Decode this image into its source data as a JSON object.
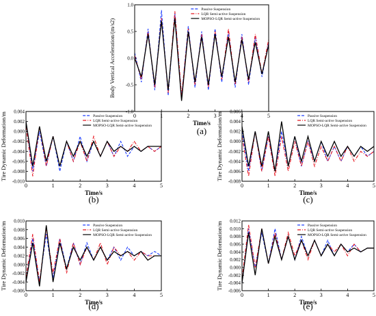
{
  "chart_data": [
    {
      "panel": "(a)",
      "type": "line",
      "xlabel": "Time/s",
      "ylabel": "Body Vertical Acceleration/(m/s2)",
      "xlim": [
        0,
        5
      ],
      "ylim": [
        -1.0,
        1.0
      ],
      "xticks": [
        "0",
        "1",
        "2",
        "3",
        "4",
        "5"
      ],
      "yticks": [
        "-1.0",
        "-0.5",
        "0.0",
        "0.5",
        "1.0"
      ],
      "legend_position": "top-right",
      "x": [
        0.0,
        0.25,
        0.5,
        0.75,
        1.0,
        1.25,
        1.5,
        1.75,
        2.0,
        2.25,
        2.5,
        2.75,
        3.0,
        3.25,
        3.5,
        3.75,
        4.0,
        4.25,
        4.5,
        4.75,
        5.0
      ],
      "series": [
        {
          "name": "Passive Suspension",
          "color": "#1f3fff",
          "dash": "dash",
          "values": [
            0.1,
            -0.45,
            0.55,
            -0.6,
            0.9,
            -0.7,
            0.85,
            -0.75,
            0.6,
            -0.55,
            0.5,
            -0.6,
            0.55,
            -0.45,
            0.5,
            -0.55,
            0.45,
            -0.5,
            0.4,
            -0.35,
            0.3
          ]
        },
        {
          "name": "LQR Semi-active Suspension",
          "color": "#e8141e",
          "dash": "dashdot",
          "values": [
            0.05,
            -0.4,
            0.5,
            -0.55,
            0.75,
            -0.65,
            0.88,
            -0.7,
            0.55,
            -0.5,
            0.45,
            -0.55,
            0.5,
            -0.4,
            0.55,
            -0.5,
            0.4,
            -0.45,
            0.45,
            -0.3,
            0.35
          ]
        },
        {
          "name": "MOPSO-LQR Semi-active Suspension",
          "color": "#000000",
          "dash": "solid",
          "values": [
            0.0,
            -0.35,
            0.45,
            -0.5,
            0.7,
            -0.6,
            0.75,
            -0.8,
            0.5,
            -0.45,
            0.4,
            -0.5,
            0.45,
            -0.35,
            0.4,
            -0.45,
            0.35,
            -0.4,
            0.3,
            -0.3,
            0.25
          ]
        }
      ]
    },
    {
      "panel": "(b)",
      "type": "line",
      "xlabel": "Time/s",
      "ylabel": "Tire Dynamic Deformation/m",
      "xlim": [
        0,
        5
      ],
      "ylim": [
        -0.01,
        0.004
      ],
      "xticks": [
        "0",
        "1",
        "2",
        "3",
        "4",
        "5"
      ],
      "yticks": [
        "0.004",
        "0.002",
        "0.000",
        "-0.002",
        "-0.004",
        "-0.006",
        "-0.008",
        "-0.010"
      ],
      "legend_position": "top-right",
      "x": [
        0.0,
        0.25,
        0.5,
        0.75,
        1.0,
        1.25,
        1.5,
        1.75,
        2.0,
        2.25,
        2.5,
        2.75,
        3.0,
        3.25,
        3.5,
        3.75,
        4.0,
        4.25,
        4.5,
        4.75,
        5.0
      ],
      "series": [
        {
          "name": "Passive Suspension",
          "color": "#1f3fff",
          "dash": "dash",
          "values": [
            0.002,
            -0.008,
            0.0,
            -0.007,
            -0.001,
            -0.008,
            -0.002,
            -0.006,
            -0.001,
            -0.006,
            -0.002,
            -0.005,
            -0.002,
            -0.005,
            -0.002,
            -0.005,
            -0.003,
            -0.004,
            -0.003,
            -0.004,
            -0.003
          ]
        },
        {
          "name": "LQR Semi-active Suspension",
          "color": "#e8141e",
          "dash": "dashdot",
          "values": [
            0.001,
            -0.009,
            0.001,
            -0.007,
            -0.001,
            -0.007,
            -0.002,
            -0.006,
            -0.002,
            -0.006,
            -0.001,
            -0.005,
            -0.002,
            -0.005,
            -0.003,
            -0.004,
            -0.002,
            -0.004,
            -0.003,
            -0.004,
            -0.003
          ]
        },
        {
          "name": "MOPSO-LQR Semi-active Suspension",
          "color": "#000000",
          "dash": "solid",
          "values": [
            0.002,
            -0.007,
            0.001,
            -0.006,
            -0.001,
            -0.007,
            -0.002,
            -0.005,
            -0.002,
            -0.005,
            -0.002,
            -0.005,
            -0.002,
            -0.004,
            -0.003,
            -0.004,
            -0.003,
            -0.004,
            -0.003,
            -0.003,
            -0.003
          ]
        }
      ]
    },
    {
      "panel": "(c)",
      "type": "line",
      "xlabel": "Time/s",
      "ylabel": "Tire Dynamic Deformation/m",
      "xlim": [
        0,
        5
      ],
      "ylim": [
        -0.008,
        0.006
      ],
      "xticks": [
        "0",
        "1",
        "2",
        "3",
        "4",
        "5"
      ],
      "yticks": [
        "0.006",
        "0.004",
        "0.002",
        "0.000",
        "-0.002",
        "-0.004",
        "-0.006",
        "-0.008"
      ],
      "legend_position": "top-right",
      "x": [
        0.0,
        0.25,
        0.5,
        0.75,
        1.0,
        1.25,
        1.5,
        1.75,
        2.0,
        2.25,
        2.5,
        2.75,
        3.0,
        3.25,
        3.5,
        3.75,
        4.0,
        4.25,
        4.5,
        4.75,
        5.0
      ],
      "series": [
        {
          "name": "Passive Suspension",
          "color": "#1f3fff",
          "dash": "dash",
          "values": [
            0.002,
            -0.006,
            0.002,
            -0.006,
            0.001,
            -0.006,
            0.002,
            -0.005,
            0.001,
            -0.005,
            0.0,
            -0.004,
            0.0,
            -0.004,
            -0.001,
            -0.004,
            -0.001,
            -0.003,
            -0.001,
            -0.003,
            -0.002
          ]
        },
        {
          "name": "LQR Semi-active Suspension",
          "color": "#e8141e",
          "dash": "dashdot",
          "values": [
            0.001,
            -0.007,
            0.002,
            -0.006,
            0.001,
            -0.007,
            0.001,
            -0.006,
            0.0,
            -0.005,
            0.0,
            -0.005,
            -0.001,
            -0.004,
            -0.001,
            -0.004,
            -0.001,
            -0.004,
            -0.002,
            -0.003,
            -0.002
          ]
        },
        {
          "name": "MOPSO-LQR Semi-active Suspension",
          "color": "#000000",
          "dash": "solid",
          "values": [
            0.003,
            -0.005,
            0.002,
            -0.005,
            0.002,
            -0.006,
            0.004,
            -0.005,
            0.001,
            -0.004,
            0.001,
            -0.004,
            0.0,
            -0.003,
            0.0,
            -0.003,
            -0.001,
            -0.003,
            -0.001,
            -0.002,
            -0.001
          ]
        }
      ]
    },
    {
      "panel": "(d)",
      "type": "line",
      "xlabel": "Time/s",
      "ylabel": "Tire Dynamic Deformation/m",
      "xlim": [
        0,
        5
      ],
      "ylim": [
        -0.006,
        0.01
      ],
      "xticks": [
        "0",
        "1",
        "2",
        "3",
        "4",
        "5"
      ],
      "yticks": [
        "0.010",
        "0.008",
        "0.006",
        "0.004",
        "0.002",
        "0.000",
        "-0.002",
        "-0.004",
        "-0.006"
      ],
      "legend_position": "top-right",
      "x": [
        0.0,
        0.25,
        0.5,
        0.75,
        1.0,
        1.25,
        1.5,
        1.75,
        2.0,
        2.25,
        2.5,
        2.75,
        3.0,
        3.25,
        3.5,
        3.75,
        4.0,
        4.25,
        4.5,
        4.75,
        5.0
      ],
      "series": [
        {
          "name": "Passive Suspension",
          "color": "#1f3fff",
          "dash": "dash",
          "values": [
            -0.004,
            0.006,
            -0.004,
            0.007,
            -0.003,
            0.006,
            -0.001,
            0.005,
            0.0,
            0.005,
            0.001,
            0.004,
            0.001,
            0.004,
            0.001,
            0.004,
            0.002,
            0.003,
            0.002,
            0.003,
            0.002
          ]
        },
        {
          "name": "LQR Semi-active Suspension",
          "color": "#e8141e",
          "dash": "dashdot",
          "values": [
            -0.003,
            0.007,
            -0.004,
            0.008,
            -0.002,
            0.006,
            -0.002,
            0.005,
            0.0,
            0.004,
            0.001,
            0.005,
            0.0,
            0.004,
            0.002,
            0.003,
            0.001,
            0.003,
            0.002,
            0.002,
            0.002
          ]
        },
        {
          "name": "MOPSO-LQR Semi-active Suspension",
          "color": "#000000",
          "dash": "solid",
          "values": [
            -0.004,
            0.005,
            -0.005,
            0.009,
            -0.004,
            0.005,
            -0.001,
            0.004,
            0.001,
            0.004,
            0.001,
            0.004,
            0.001,
            0.003,
            0.002,
            0.003,
            0.002,
            0.003,
            0.001,
            0.002,
            0.002
          ]
        }
      ]
    },
    {
      "panel": "(e)",
      "type": "line",
      "xlabel": "Time/s",
      "ylabel": "Tire Dynamic Deformation/m",
      "xlim": [
        0,
        5
      ],
      "ylim": [
        -0.006,
        0.012
      ],
      "xticks": [
        "0",
        "1",
        "2",
        "3",
        "4",
        "5"
      ],
      "yticks": [
        "0.012",
        "0.010",
        "0.008",
        "0.006",
        "0.004",
        "0.002",
        "0.000",
        "-0.002",
        "-0.004",
        "-0.006"
      ],
      "legend_position": "top-right",
      "x": [
        0.0,
        0.25,
        0.5,
        0.75,
        1.0,
        1.25,
        1.5,
        1.75,
        2.0,
        2.25,
        2.5,
        2.75,
        3.0,
        3.25,
        3.5,
        3.75,
        4.0,
        4.25,
        4.5,
        4.75,
        5.0
      ],
      "series": [
        {
          "name": "Passive Suspension",
          "color": "#1f3fff",
          "dash": "dash",
          "values": [
            -0.004,
            0.01,
            0.0,
            0.009,
            0.001,
            0.01,
            0.002,
            0.008,
            0.002,
            0.008,
            0.003,
            0.007,
            0.003,
            0.007,
            0.003,
            0.006,
            0.004,
            0.006,
            0.004,
            0.005,
            0.005
          ]
        },
        {
          "name": "LQR Semi-active Suspension",
          "color": "#e8141e",
          "dash": "dashdot",
          "values": [
            -0.003,
            0.011,
            0.0,
            0.01,
            0.001,
            0.009,
            0.002,
            0.009,
            0.003,
            0.007,
            0.002,
            0.007,
            0.003,
            0.006,
            0.004,
            0.006,
            0.003,
            0.006,
            0.004,
            0.005,
            0.005
          ]
        },
        {
          "name": "MOPSO-LQR Semi-active Suspension",
          "color": "#000000",
          "dash": "solid",
          "values": [
            -0.004,
            0.009,
            -0.002,
            0.01,
            0.001,
            0.008,
            0.002,
            0.008,
            0.002,
            0.007,
            0.003,
            0.007,
            0.003,
            0.006,
            0.003,
            0.006,
            0.004,
            0.005,
            0.004,
            0.005,
            0.005
          ]
        }
      ]
    }
  ]
}
